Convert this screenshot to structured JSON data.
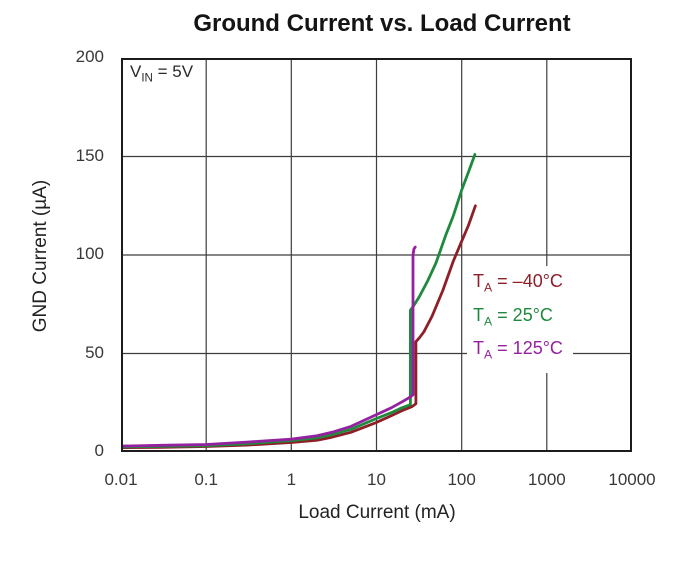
{
  "title": "Ground Current vs. Load Current",
  "annotation": {
    "v_prefix": "V",
    "v_sub": "IN",
    "v_rest": " = 5V"
  },
  "legend": [
    {
      "t": "T",
      "sub": "A",
      "rest": " = –40°C",
      "color": "#8e1f28"
    },
    {
      "t": "T",
      "sub": "A",
      "rest": " = 25°C",
      "color": "#1f8a3d"
    },
    {
      "t": "T",
      "sub": "A",
      "rest": " = 125°C",
      "color": "#94219f"
    }
  ],
  "colors": {
    "grid": "#3d3d3d",
    "frame": "#1c1c1c",
    "text": "#222222"
  },
  "chart_data": {
    "type": "line",
    "title": "Ground Current vs. Load Current",
    "xlabel": "Load Current (mA)",
    "ylabel": "GND Current (µA)",
    "x_scale": "log",
    "xlim": [
      0.01,
      10000
    ],
    "ylim": [
      0,
      200
    ],
    "x_ticks": [
      "0.01",
      "0.1",
      "1",
      "10",
      "100",
      "1000",
      "10000"
    ],
    "y_ticks": [
      "0",
      "50",
      "100",
      "150",
      "200"
    ],
    "grid": true,
    "legend_position": "middle-right",
    "annotation": "VIN = 5V",
    "series": [
      {
        "name": "TA = –40°C",
        "color": "#8e1f28",
        "points": [
          [
            0.01,
            2.2
          ],
          [
            0.03,
            2.4
          ],
          [
            0.1,
            2.8
          ],
          [
            0.3,
            3.5
          ],
          [
            1,
            4.8
          ],
          [
            2,
            6
          ],
          [
            3,
            7.5
          ],
          [
            5,
            10
          ],
          [
            10,
            15
          ],
          [
            15,
            18.5
          ],
          [
            20,
            21
          ],
          [
            26,
            23
          ],
          [
            29,
            24.5
          ],
          [
            29,
            56
          ],
          [
            32,
            58
          ],
          [
            36,
            61
          ],
          [
            45,
            69
          ],
          [
            60,
            82
          ],
          [
            80,
            97
          ],
          [
            100,
            107
          ],
          [
            120,
            115
          ],
          [
            145,
            125
          ]
        ]
      },
      {
        "name": "TA = 25°C",
        "color": "#1f8a3d",
        "points": [
          [
            0.01,
            2.6
          ],
          [
            0.03,
            2.9
          ],
          [
            0.1,
            3.2
          ],
          [
            0.3,
            4.2
          ],
          [
            1,
            5.8
          ],
          [
            2,
            7.2
          ],
          [
            3,
            8.8
          ],
          [
            5,
            11.5
          ],
          [
            10,
            17
          ],
          [
            15,
            20
          ],
          [
            20,
            22.5
          ],
          [
            25,
            24
          ],
          [
            25,
            72
          ],
          [
            28,
            75
          ],
          [
            32,
            79
          ],
          [
            40,
            87
          ],
          [
            50,
            96
          ],
          [
            65,
            110
          ],
          [
            80,
            120
          ],
          [
            100,
            133
          ],
          [
            120,
            142
          ],
          [
            143,
            151
          ]
        ]
      },
      {
        "name": "TA = 125°C",
        "color": "#94219f",
        "points": [
          [
            0.01,
            3
          ],
          [
            0.03,
            3.4
          ],
          [
            0.1,
            3.8
          ],
          [
            0.3,
            5
          ],
          [
            1,
            6.5
          ],
          [
            2,
            8.2
          ],
          [
            3,
            10
          ],
          [
            5,
            13
          ],
          [
            10,
            19
          ],
          [
            15,
            22.5
          ],
          [
            20,
            25.5
          ],
          [
            24,
            27.5
          ],
          [
            26.8,
            29
          ],
          [
            26.8,
            100
          ],
          [
            27.5,
            103
          ],
          [
            28.5,
            104
          ]
        ]
      }
    ]
  }
}
